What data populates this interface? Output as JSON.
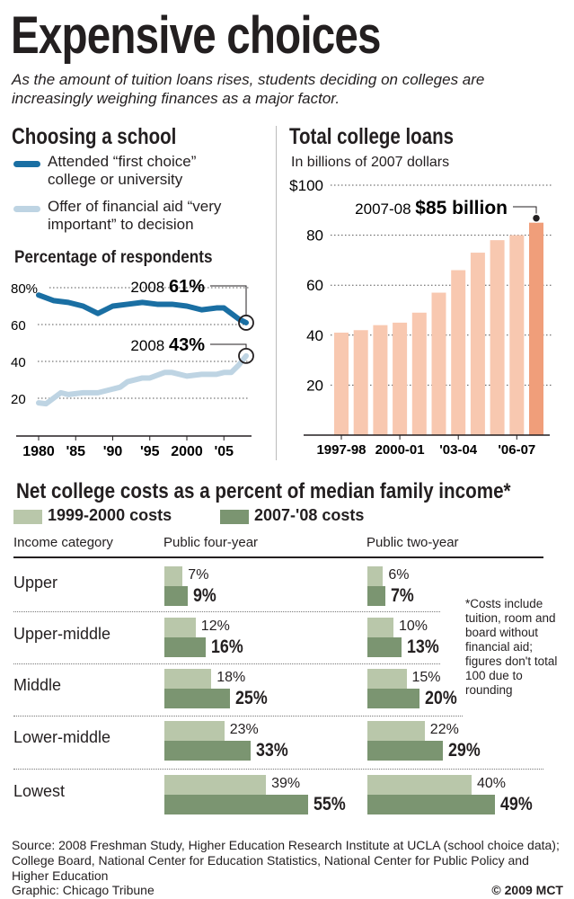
{
  "title": "Expensive choices",
  "subtitle": "As the amount of tuition loans rises, students deciding on colleges are increasingly weighing finances as a major factor.",
  "colors": {
    "first_choice": "#1a6fa3",
    "financial_aid": "#bed4e3",
    "loan_bars": "#f8c8b0",
    "loan_bar_highlight": "#f09e7a",
    "costs_1999": "#b9c7aa",
    "costs_2007": "#7b9571"
  },
  "chart_data": [
    {
      "type": "line",
      "title": "Choosing a school",
      "ylabel": "Percentage of respondents",
      "ylim": [
        10,
        85
      ],
      "y_ticks": [
        "80%",
        "60",
        "40",
        "20"
      ],
      "y_tick_values": [
        80,
        60,
        40,
        20
      ],
      "x_ticks": [
        "1980",
        "'85",
        "'90",
        "'95",
        "2000",
        "'05"
      ],
      "x_tick_values": [
        1980,
        1985,
        1990,
        1995,
        2000,
        2005
      ],
      "grid": "dotted horizontal",
      "series": [
        {
          "name": "Attended “first choice” college or university",
          "x": [
            1980,
            1982,
            1984,
            1986,
            1988,
            1990,
            1992,
            1994,
            1996,
            1998,
            2000,
            2002,
            2004,
            2005,
            2006,
            2007,
            2008
          ],
          "y": [
            76,
            73,
            72,
            70,
            66,
            70,
            71,
            72,
            71,
            71,
            70,
            68,
            69,
            69,
            66,
            63,
            61
          ]
        },
        {
          "name": "Offer of financial aid “very important” to decision",
          "x": [
            1980,
            1981,
            1983,
            1984,
            1986,
            1988,
            1990,
            1991,
            1992,
            1994,
            1995,
            1997,
            1998,
            2000,
            2002,
            2004,
            2005,
            2006,
            2007,
            2008
          ],
          "y": [
            17.5,
            17,
            23,
            22,
            23,
            23,
            25,
            26,
            29,
            31,
            31,
            34,
            34,
            32,
            33,
            33,
            34,
            34,
            38,
            43
          ]
        }
      ],
      "annotations": [
        {
          "year": "2008",
          "value": "61%"
        },
        {
          "year": "2008",
          "value": "43%"
        }
      ]
    },
    {
      "type": "bar",
      "title": "Total college loans",
      "subtitle": "In billions of 2007 dollars",
      "categories": [
        "1997-98",
        "1998-99",
        "1999-00",
        "2000-01",
        "2001-02",
        "2002-03",
        "2003-04",
        "2004-05",
        "2005-06",
        "2006-07",
        "2007-08"
      ],
      "values": [
        41,
        42,
        44,
        45,
        49,
        57,
        66,
        73,
        78,
        80,
        85
      ],
      "x_tick_labels": [
        "1997-98",
        "2000-01",
        "'03-04",
        "'06-07"
      ],
      "y_ticks": [
        "$100",
        "80",
        "60",
        "40",
        "20"
      ],
      "y_tick_values": [
        100,
        80,
        60,
        40,
        20
      ],
      "ylim": [
        0,
        100
      ],
      "grid": "dotted horizontal",
      "annotation": {
        "year": "2007-08",
        "value": "$85 billion"
      }
    },
    {
      "type": "bar",
      "title": "Net college costs as a percent of median family income*",
      "legend": [
        "1999-2000 costs",
        "2007-'08 costs"
      ],
      "headers": [
        "Income category",
        "Public four-year",
        "Public two-year"
      ],
      "rows": [
        {
          "category": "Upper",
          "four_year": [
            7,
            9
          ],
          "two_year": [
            6,
            7
          ]
        },
        {
          "category": "Upper-middle",
          "four_year": [
            12,
            16
          ],
          "two_year": [
            10,
            13
          ]
        },
        {
          "category": "Middle",
          "four_year": [
            18,
            25
          ],
          "two_year": [
            15,
            20
          ]
        },
        {
          "category": "Lower-middle",
          "four_year": [
            23,
            33
          ],
          "two_year": [
            22,
            29
          ]
        },
        {
          "category": "Lowest",
          "four_year": [
            39,
            55
          ],
          "two_year": [
            40,
            49
          ]
        }
      ],
      "footnote": "*Costs include tuition, room and board without financial aid; figures don't total 100 due to rounding"
    }
  ],
  "source": "Source: 2008 Freshman Study, Higher Education Research Institute at UCLA (school choice data); College Board, National Center for Education Statistics, National Center for Public Policy and Higher Education",
  "credit": "Graphic: Chicago Tribune",
  "copyright": "© 2009 MCT"
}
